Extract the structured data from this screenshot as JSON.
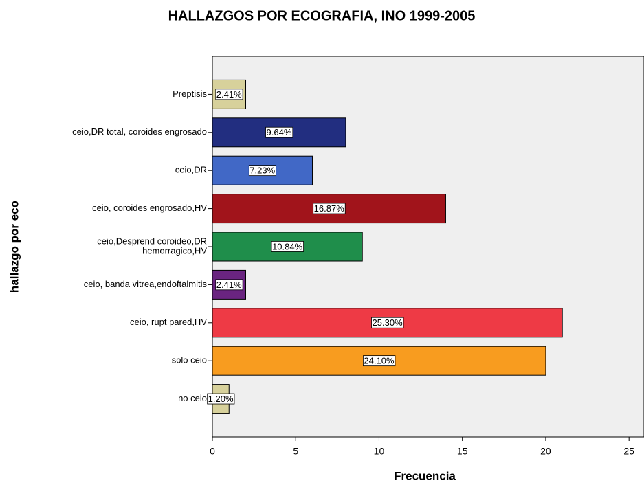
{
  "chart_data": {
    "type": "bar",
    "orientation": "horizontal",
    "title": "HALLAZGOS POR ECOGRAFIA, INO 1999-2005",
    "x_label": "Frecuencia",
    "y_label": "hallazgo por eco",
    "categories": [
      "Preptisis",
      "ceio,DR total, coroides engrosado",
      "ceio,DR",
      "ceio, coroides engrosado,HV",
      [
        "ceio,Desprend coroideo,DR",
        "hemorragico,HV"
      ],
      "ceio, banda vitrea,endoftalmitis",
      "ceio, rupt pared,HV",
      "solo ceio",
      "no ceio"
    ],
    "values": [
      2,
      8,
      6,
      14,
      9,
      2,
      21,
      20,
      1
    ],
    "value_labels": [
      "2.41%",
      "9.64%",
      "7.23%",
      "16.87%",
      "10.84%",
      "2.41%",
      "25.30%",
      "24.10%",
      "1.20%"
    ],
    "colors": [
      "#d7d19b",
      "#222e80",
      "#4168c6",
      "#a1141b",
      "#1f8e4b",
      "#6a2480",
      "#ee3a45",
      "#f89c1f",
      "#d7d19b"
    ],
    "xlim": [
      0,
      25.9
    ],
    "xticks": [
      0,
      5,
      10,
      15,
      20,
      25
    ]
  }
}
